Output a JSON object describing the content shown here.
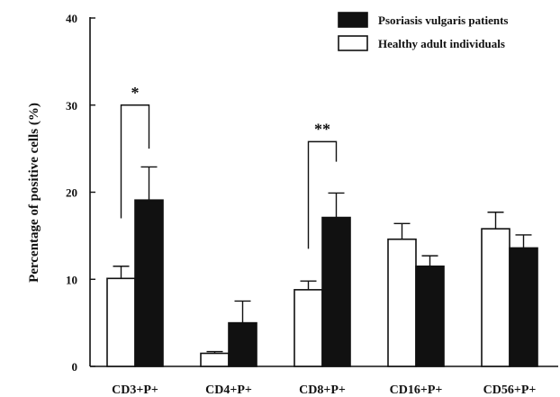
{
  "chart_data": {
    "type": "bar",
    "title": "",
    "xlabel": "",
    "ylabel": "Percentage of positive cells (%)",
    "ylim": [
      0,
      40
    ],
    "yticks": [
      0,
      10,
      20,
      30,
      40
    ],
    "grid": false,
    "legend_position": "top-right",
    "categories": [
      "CD3+P+",
      "CD4+P+",
      "CD8+P+",
      "CD16+P+",
      "CD56+P+"
    ],
    "series": [
      {
        "name": "Healthy adult individuals",
        "fill": "#ffffff",
        "values": [
          10.1,
          1.5,
          8.8,
          14.6,
          15.8
        ],
        "errors": [
          1.4,
          0.2,
          1.0,
          1.8,
          1.9
        ]
      },
      {
        "name": "Psoriasis vulgaris patients",
        "fill": "#111111",
        "values": [
          19.1,
          5.0,
          17.1,
          11.5,
          13.6
        ],
        "errors": [
          3.8,
          2.5,
          2.8,
          1.2,
          1.5
        ]
      }
    ],
    "legend_order": [
      "Psoriasis vulgaris patients",
      "Healthy adult individuals"
    ],
    "annotations": [
      {
        "category_index": 0,
        "label": "*",
        "bracket_left_y": 17,
        "bracket_right_y": 25,
        "top_y": 30
      },
      {
        "category_index": 2,
        "label": "**",
        "bracket_left_y": 13.5,
        "bracket_right_y": 23.5,
        "top_y": 25.8
      }
    ]
  }
}
